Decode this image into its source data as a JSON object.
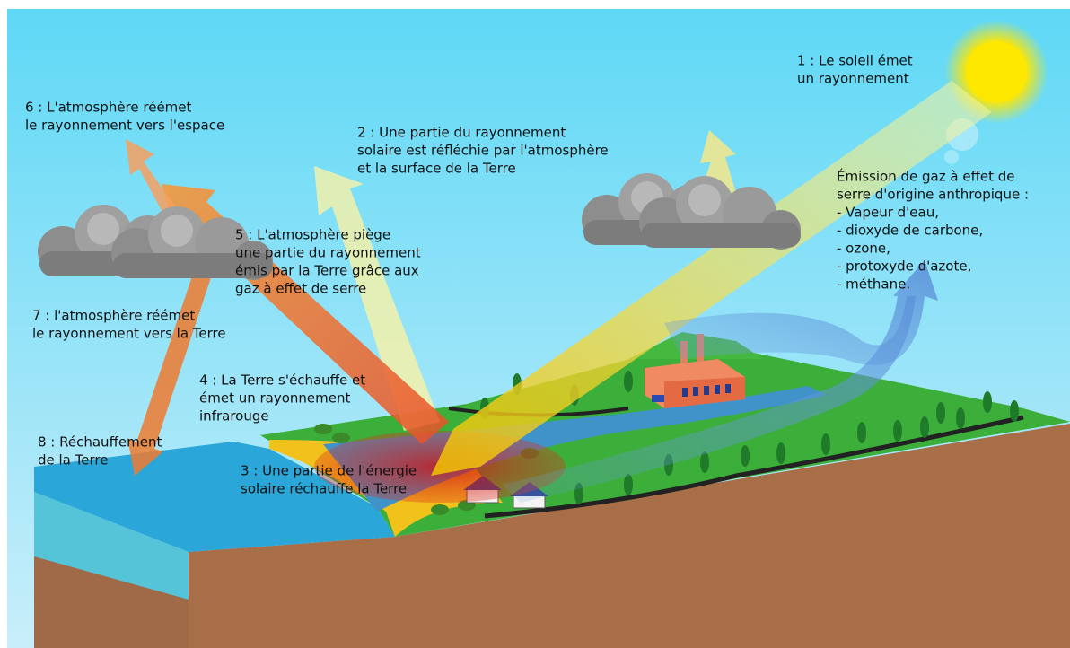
{
  "labels": [
    {
      "lines": [
        "1 : Le soleil émet",
        "un rayonnement"
      ]
    },
    {
      "lines": [
        "2 : Une partie du rayonnement",
        "solaire est réfléchie par l'atmosphère",
        "et la surface de la Terre"
      ]
    },
    {
      "lines": [
        "3 : Une partie de l'énergie",
        "solaire réchauffe la Terre"
      ]
    },
    {
      "lines": [
        "4 : La Terre s'échauffe et",
        "émet un rayonnement",
        "infrarouge"
      ]
    },
    {
      "lines": [
        "5 : L'atmosphère piège",
        "une partie du rayonnement",
        "émis par la Terre grâce aux",
        "gaz à effet de serre"
      ]
    },
    {
      "lines": [
        "6 : L'atmosphère réémet",
        "le rayonnement vers l'espace"
      ]
    },
    {
      "lines": [
        "7 : l'atmosphère réémet",
        "le rayonnement vers la Terre"
      ]
    },
    {
      "lines": [
        "8 : Réchauffement",
        "de la Terre"
      ]
    }
  ],
  "emissions": {
    "title": [
      "Émission de gaz à effet de",
      "serre d'origine anthropique :"
    ],
    "items": [
      "- Vapeur d'eau,",
      "- dioxyde de carbone,",
      "- ozone,",
      "- protoxyde d'azote,",
      "- méthane."
    ]
  }
}
